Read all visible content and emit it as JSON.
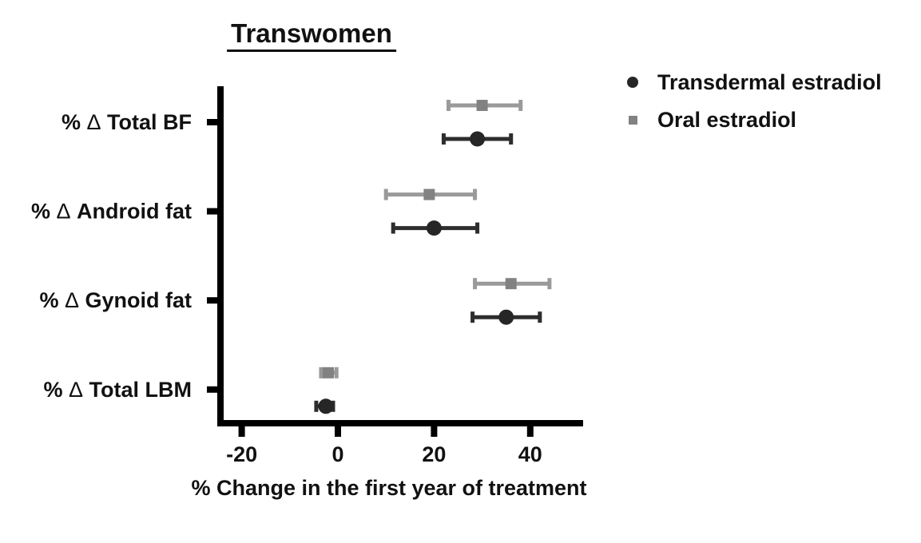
{
  "figure": {
    "background": "#ffffff",
    "text_color": "#111111",
    "axis_color": "#000000"
  },
  "chart_data": {
    "type": "scatter",
    "subtype": "forest-plot-with-error-bars",
    "title": "Transwomen",
    "xlabel": "% Change in the first year of treatment",
    "categories": [
      "% Δ Total BF",
      "% Δ Android fat",
      "% Δ Gynoid fat",
      "% Δ Total LBM"
    ],
    "x_ticks": [
      -20,
      0,
      20,
      40
    ],
    "x_range": [
      -25,
      51
    ],
    "grid": false,
    "legend_position": "top-right",
    "series": [
      {
        "name": "Transdermal estradiol",
        "marker": "circle",
        "color": "#262626",
        "line_color": "#2d2d2d",
        "points": [
          {
            "category": "% Δ Total BF",
            "mean": 29,
            "lo": 22,
            "hi": 36
          },
          {
            "category": "% Δ Android fat",
            "mean": 20,
            "lo": 11.5,
            "hi": 29
          },
          {
            "category": "% Δ Gynoid fat",
            "mean": 35,
            "lo": 28,
            "hi": 42
          },
          {
            "category": "% Δ Total LBM",
            "mean": -2.5,
            "lo": -4.5,
            "hi": -1
          }
        ]
      },
      {
        "name": "Oral estradiol",
        "marker": "square",
        "color": "#828282",
        "line_color": "#9a9a9a",
        "points": [
          {
            "category": "% Δ Total BF",
            "mean": 30,
            "lo": 23,
            "hi": 38
          },
          {
            "category": "% Δ Android fat",
            "mean": 19,
            "lo": 10,
            "hi": 28.5
          },
          {
            "category": "% Δ Gynoid fat",
            "mean": 36,
            "lo": 28.5,
            "hi": 44
          },
          {
            "category": "% Δ Total LBM",
            "mean": -2,
            "lo": -3.5,
            "hi": -0.3
          }
        ]
      }
    ]
  }
}
